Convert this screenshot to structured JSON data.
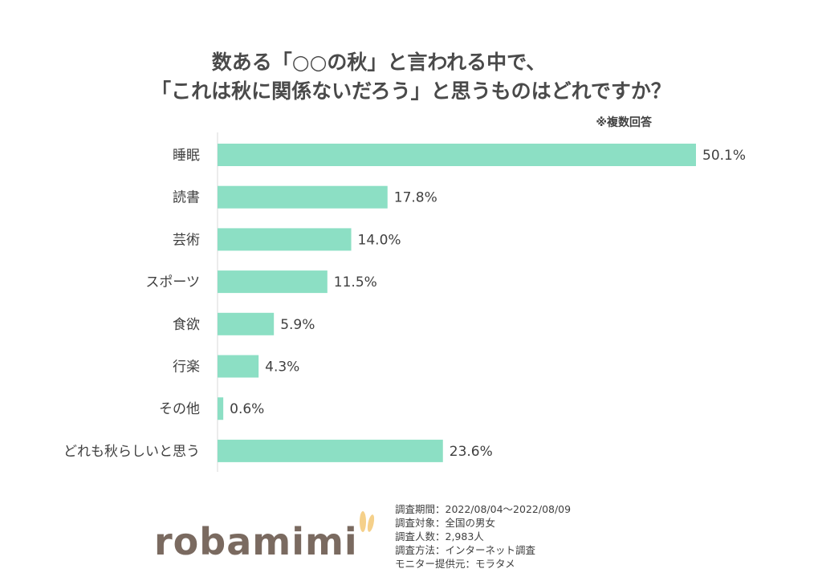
{
  "title": {
    "line1": "数ある「○○の秋」と言われる中で、",
    "line2": "「これは秋に関係ないだろう」と思うものはどれですか？"
  },
  "note": "※複数回答",
  "chart_data": {
    "type": "bar",
    "orientation": "horizontal",
    "categories": [
      "睡眠",
      "読書",
      "芸術",
      "スポーツ",
      "食欲",
      "行楽",
      "その他",
      "どれも秋らしいと思う"
    ],
    "values": [
      50.1,
      17.8,
      14.0,
      11.5,
      5.9,
      4.3,
      0.6,
      23.6
    ],
    "value_labels": [
      "50.1%",
      "17.8%",
      "14.0%",
      "11.5%",
      "5.9%",
      "4.3%",
      "0.6%",
      "23.6%"
    ],
    "unit": "%",
    "xlim": [
      0,
      50.1
    ],
    "bar_color": "#8cdfc4",
    "grid": false,
    "legend": "none"
  },
  "footer": {
    "logo": "robamimi",
    "logo_color": "#7a6a60",
    "ear_color": "#f5d08a",
    "survey": [
      "調査期間：2022/08/04～2022/08/09",
      "調査対象：全国の男女",
      "調査人数：2,983人",
      "調査方法：インターネット調査",
      "モニター提供元：モラタメ"
    ]
  }
}
